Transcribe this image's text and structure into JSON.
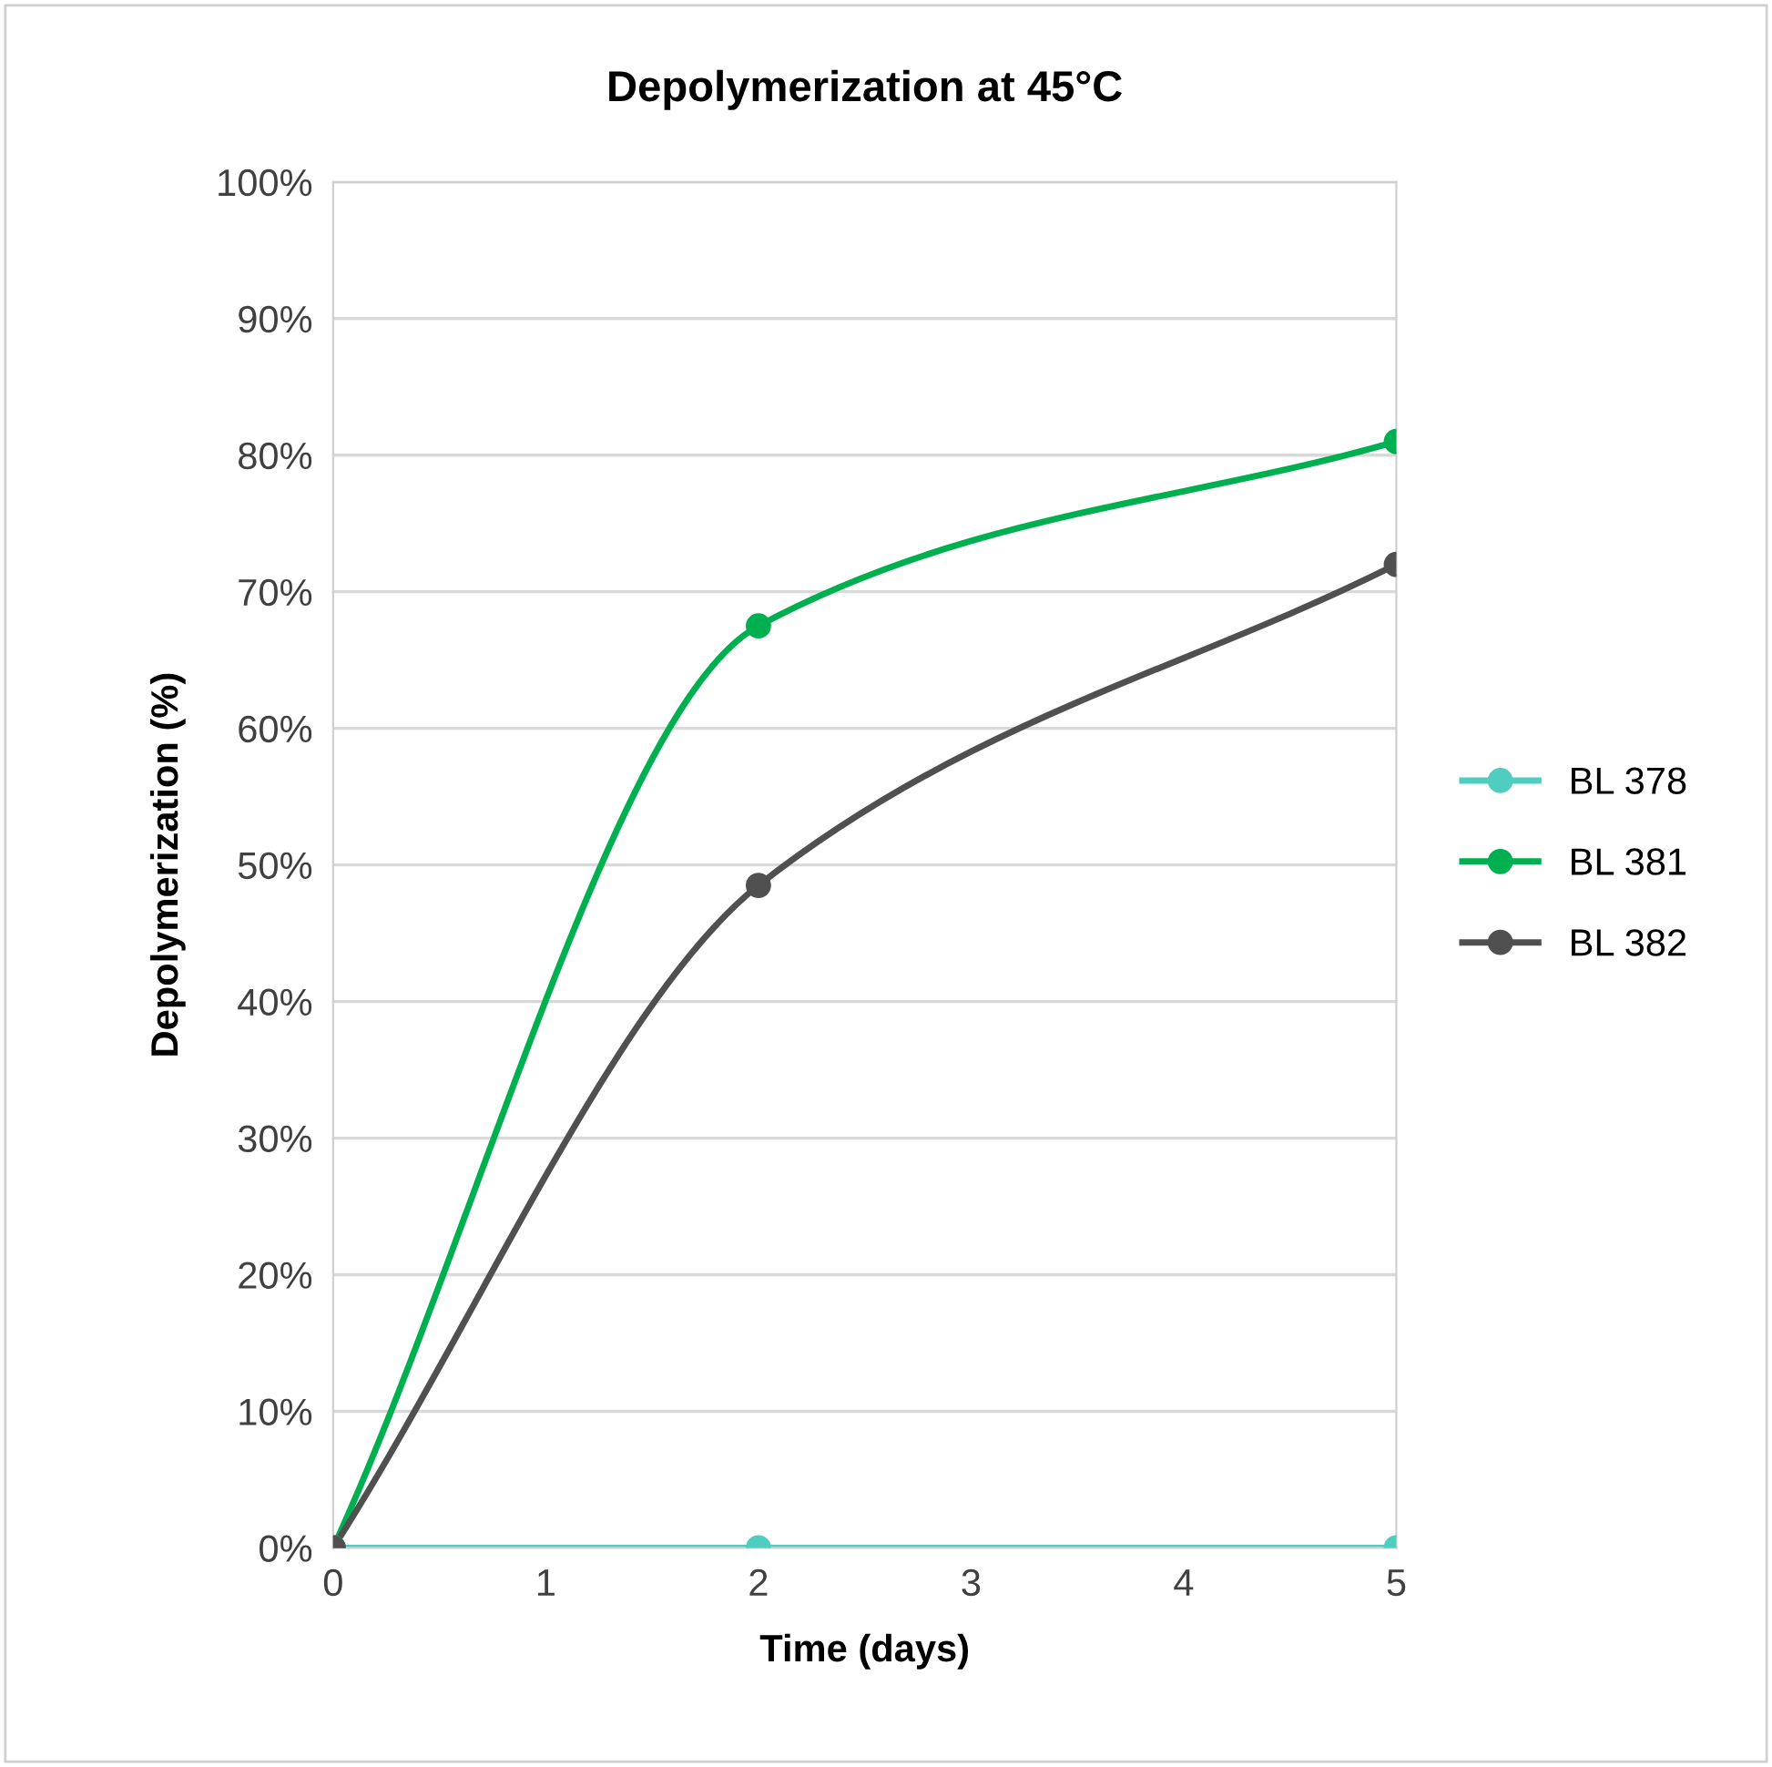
{
  "chart_data": {
    "type": "line",
    "title": "Depolymerization at 45°C",
    "xlabel": "Time (days)",
    "ylabel": "Depolymerization (%)",
    "x": [
      0,
      2,
      5
    ],
    "series": [
      {
        "name": "BL 378",
        "color": "#4ecdc0",
        "values": [
          0,
          0,
          0
        ]
      },
      {
        "name": "BL 381",
        "color": "#00b050",
        "values": [
          0,
          67.5,
          81
        ]
      },
      {
        "name": "BL 382",
        "color": "#505050",
        "values": [
          0,
          48.5,
          72
        ]
      }
    ],
    "xlim": [
      0,
      5
    ],
    "xticks": [
      0,
      1,
      2,
      3,
      4,
      5
    ],
    "ylim": [
      0,
      100
    ],
    "yticks": [
      {
        "value": 0,
        "label": "0%"
      },
      {
        "value": 10,
        "label": "10%"
      },
      {
        "value": 20,
        "label": "20%"
      },
      {
        "value": 30,
        "label": "30%"
      },
      {
        "value": 40,
        "label": "40%"
      },
      {
        "value": 50,
        "label": "50%"
      },
      {
        "value": 60,
        "label": "60%"
      },
      {
        "value": 70,
        "label": "70%"
      },
      {
        "value": 80,
        "label": "80%"
      },
      {
        "value": 90,
        "label": "90%"
      },
      {
        "value": 100,
        "label": "100%"
      }
    ],
    "grid": "y",
    "legend": "right",
    "marker": "circle",
    "line_style": "solid"
  }
}
